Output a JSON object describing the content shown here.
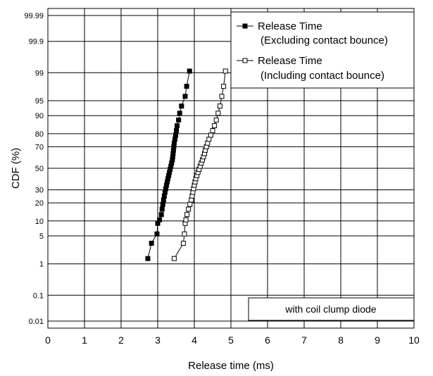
{
  "chart_data": {
    "type": "scatter",
    "title": "",
    "xlabel": "Release time  (ms)",
    "ylabel": "CDF (%)",
    "x_scale": "linear",
    "y_scale": "normal-probability",
    "xlim": [
      0,
      10
    ],
    "ylim": [
      0.005,
      99.995
    ],
    "grid": true,
    "legend_position": "top-right",
    "x_ticks": [
      0,
      1,
      2,
      3,
      4,
      5,
      6,
      7,
      8,
      9,
      10
    ],
    "x_tick_labels": [
      "0",
      "1",
      "2",
      "3",
      "4",
      "5",
      "6",
      "7",
      "8",
      "9",
      "10"
    ],
    "y_ticks": [
      0.01,
      0.1,
      1,
      5,
      10,
      20,
      30,
      50,
      70,
      80,
      90,
      95,
      99,
      99.9,
      99.99
    ],
    "y_tick_labels": [
      "0.01",
      "0.1",
      "1",
      "5",
      "10",
      "20",
      "30",
      "50",
      "70",
      "80",
      "90",
      "95",
      "99",
      "99.9",
      "99.99"
    ],
    "annotation": "with coil clump diode",
    "series": [
      {
        "name": "Release Time",
        "name_line2": "(Excluding contact bounce)",
        "marker": "filled-square",
        "color": "#000000",
        "points": [
          [
            2.73,
            1.4
          ],
          [
            2.83,
            3.4
          ],
          [
            2.98,
            5.5
          ],
          [
            3.0,
            9.0
          ],
          [
            3.05,
            10.5
          ],
          [
            3.1,
            13
          ],
          [
            3.12,
            16
          ],
          [
            3.14,
            19
          ],
          [
            3.16,
            22
          ],
          [
            3.18,
            25
          ],
          [
            3.2,
            28
          ],
          [
            3.22,
            31
          ],
          [
            3.24,
            34
          ],
          [
            3.26,
            37
          ],
          [
            3.28,
            40
          ],
          [
            3.3,
            43
          ],
          [
            3.32,
            46
          ],
          [
            3.34,
            49
          ],
          [
            3.36,
            52
          ],
          [
            3.38,
            55
          ],
          [
            3.4,
            58
          ],
          [
            3.41,
            61
          ],
          [
            3.42,
            64
          ],
          [
            3.43,
            67
          ],
          [
            3.44,
            70
          ],
          [
            3.45,
            73
          ],
          [
            3.47,
            76
          ],
          [
            3.49,
            79
          ],
          [
            3.51,
            82
          ],
          [
            3.53,
            85
          ],
          [
            3.57,
            88
          ],
          [
            3.6,
            91
          ],
          [
            3.65,
            93.5
          ],
          [
            3.75,
            96
          ],
          [
            3.79,
            97.7
          ],
          [
            3.87,
            99.1
          ]
        ]
      },
      {
        "name": "Release Time",
        "name_line2": "(Including contact bounce)",
        "marker": "open-square",
        "color": "#000000",
        "points": [
          [
            3.45,
            1.4
          ],
          [
            3.7,
            3.4
          ],
          [
            3.73,
            5.5
          ],
          [
            3.75,
            9.0
          ],
          [
            3.77,
            10.5
          ],
          [
            3.8,
            13
          ],
          [
            3.84,
            16
          ],
          [
            3.88,
            19
          ],
          [
            3.92,
            22
          ],
          [
            3.94,
            25
          ],
          [
            3.96,
            28
          ],
          [
            3.98,
            31
          ],
          [
            4.0,
            34
          ],
          [
            4.02,
            37
          ],
          [
            4.04,
            40
          ],
          [
            4.07,
            43
          ],
          [
            4.1,
            46
          ],
          [
            4.13,
            49
          ],
          [
            4.16,
            52
          ],
          [
            4.19,
            55
          ],
          [
            4.22,
            58
          ],
          [
            4.25,
            61
          ],
          [
            4.28,
            64
          ],
          [
            4.3,
            67
          ],
          [
            4.33,
            70
          ],
          [
            4.36,
            73
          ],
          [
            4.4,
            76
          ],
          [
            4.45,
            79
          ],
          [
            4.5,
            82
          ],
          [
            4.55,
            85
          ],
          [
            4.6,
            88
          ],
          [
            4.65,
            91
          ],
          [
            4.7,
            93.5
          ],
          [
            4.75,
            96
          ],
          [
            4.8,
            97.7
          ],
          [
            4.85,
            99.1
          ]
        ]
      }
    ]
  }
}
